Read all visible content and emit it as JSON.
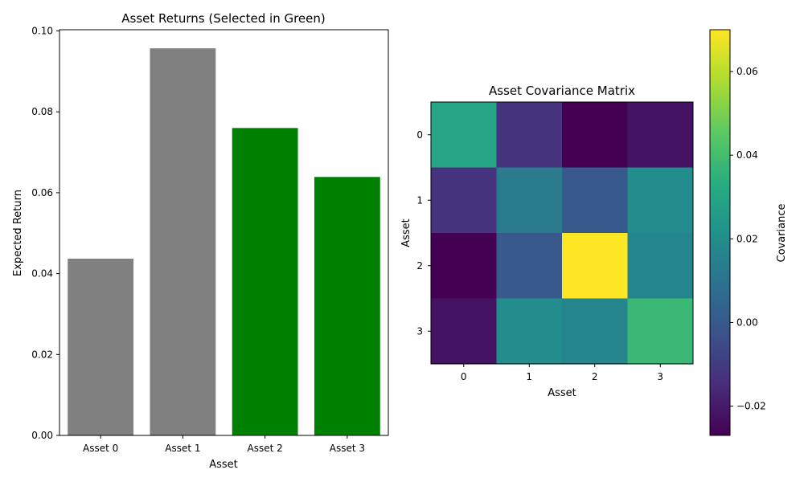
{
  "chart_data": [
    {
      "type": "bar",
      "title": "Asset Returns (Selected in Green)",
      "xlabel": "Asset",
      "ylabel": "Expected Return",
      "categories": [
        "Asset 0",
        "Asset 1",
        "Asset 2",
        "Asset 3"
      ],
      "values": [
        0.0437,
        0.0957,
        0.076,
        0.0639
      ],
      "selected": [
        false,
        false,
        true,
        true
      ],
      "colors": {
        "default": "#808080",
        "selected": "#008000"
      },
      "ylim": [
        0,
        0.1003
      ],
      "yticks": [
        0.0,
        0.02,
        0.04,
        0.06,
        0.08,
        0.1
      ],
      "ytick_labels": [
        "0.00",
        "0.02",
        "0.04",
        "0.06",
        "0.08",
        "0.10"
      ],
      "grid": false
    },
    {
      "type": "heatmap",
      "title": "Asset Covariance Matrix",
      "xlabel": "Asset",
      "ylabel": "Asset",
      "x_ticks": [
        "0",
        "1",
        "2",
        "3"
      ],
      "y_ticks": [
        "0",
        "1",
        "2",
        "3"
      ],
      "matrix": [
        [
          0.03,
          -0.013,
          -0.027,
          -0.022
        ],
        [
          -0.013,
          0.013,
          0.0,
          0.02
        ],
        [
          -0.027,
          0.0,
          0.07,
          0.017
        ],
        [
          -0.022,
          0.02,
          0.017,
          0.038
        ]
      ],
      "colormap": "viridis",
      "colorbar": {
        "label": "Covariance",
        "range": [
          -0.027,
          0.07
        ],
        "ticks": [
          -0.02,
          0.0,
          0.02,
          0.04,
          0.06
        ],
        "tick_labels": [
          "−0.02",
          "0.00",
          "0.02",
          "0.04",
          "0.06"
        ]
      }
    }
  ]
}
